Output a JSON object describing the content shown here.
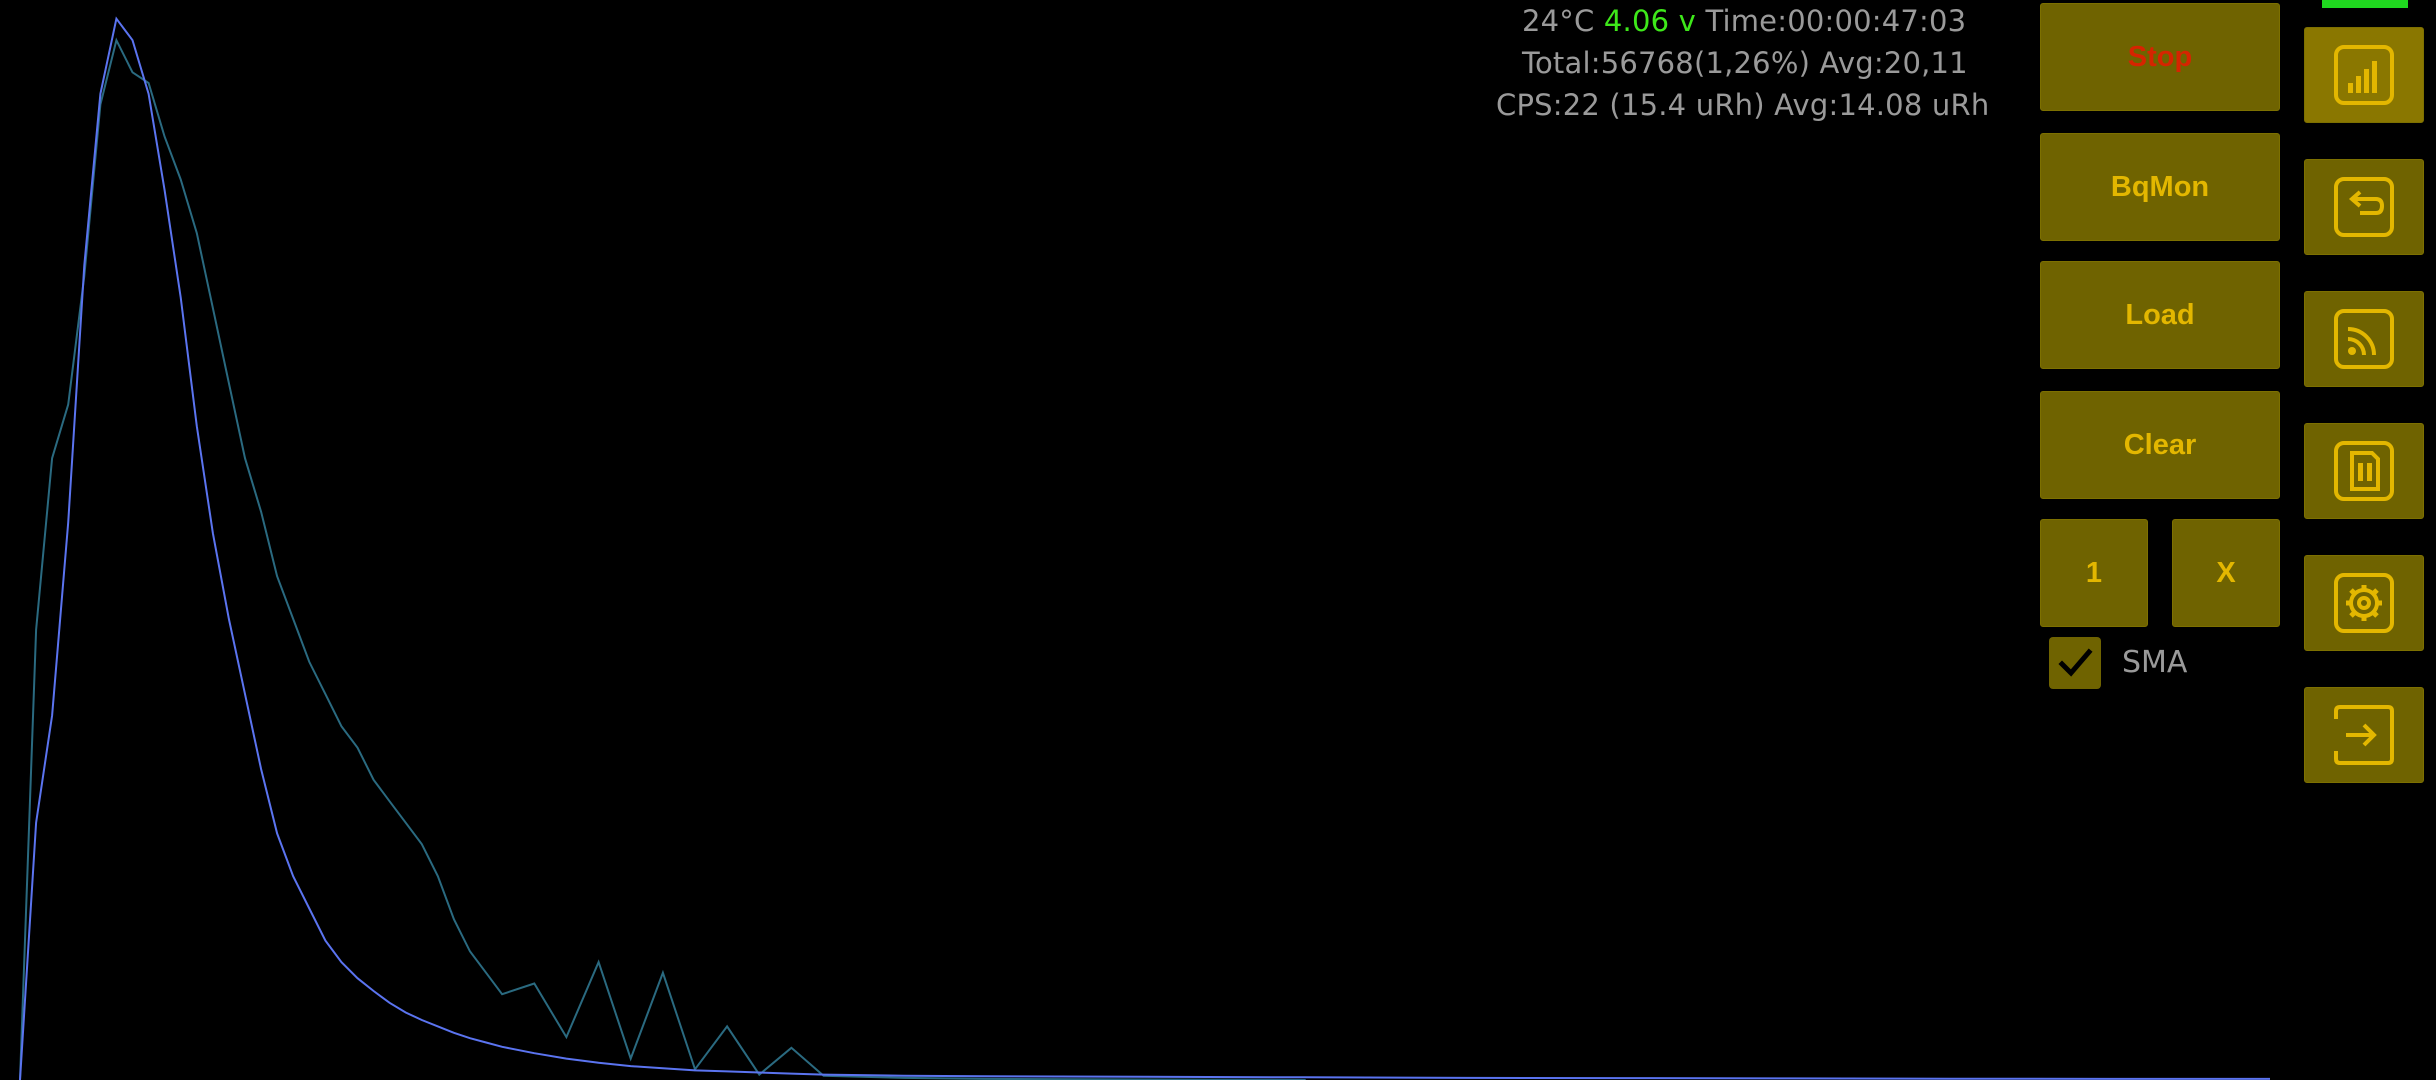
{
  "status": {
    "temperature": "24°C",
    "voltage": "4.06 v",
    "time": "Time:00:00:47:03",
    "total": "Total:56768(1,26%) Avg:20,11",
    "cps": "CPS:22 (15.4 uRh) Avg:14.08 uRh"
  },
  "buttons": {
    "stop": "Stop",
    "bqmon": "BqMon",
    "load": "Load",
    "clear": "Clear",
    "one": "1",
    "x": "X"
  },
  "sma": {
    "label": "SMA",
    "checked": true
  },
  "icons": [
    "signal-bars-icon",
    "undo-icon",
    "rss-feed-icon",
    "sd-card-icon",
    "settings-gear-icon",
    "exit-icon"
  ],
  "colors": {
    "background": "#000000",
    "button_bg": "#6f6300",
    "button_text": "#e3b700",
    "stop_text": "#d62400",
    "voltage": "#3ee81a",
    "series_current": "#5b74f0",
    "series_previous": "#2a6a80"
  },
  "chart_data": {
    "type": "line",
    "title": "",
    "xlabel": "",
    "ylabel": "",
    "xlim": [
      0,
      1400
    ],
    "ylim": [
      0,
      100
    ],
    "grid": false,
    "legend": "none",
    "series": [
      {
        "x": [
          0,
          10,
          20,
          30,
          40,
          50,
          60,
          70,
          80,
          90,
          100,
          110,
          120,
          130,
          140,
          150,
          160,
          170,
          180,
          190,
          200,
          210,
          220,
          230,
          240,
          250,
          260,
          270,
          280,
          290,
          300,
          320,
          340,
          360,
          380,
          400,
          420,
          440,
          460,
          480,
          500,
          550,
          600,
          700,
          800,
          900,
          1000,
          1100,
          1200,
          1300,
          1400
        ],
        "values": [
          0,
          24,
          34,
          52,
          76,
          92,
          99,
          97,
          92,
          83,
          73,
          61,
          51,
          43,
          36,
          29,
          23,
          19,
          16,
          13,
          11,
          9.5,
          8.3,
          7.2,
          6.3,
          5.6,
          5.0,
          4.4,
          3.9,
          3.5,
          3.1,
          2.5,
          2.0,
          1.6,
          1.3,
          1.1,
          0.9,
          0.8,
          0.7,
          0.6,
          0.5,
          0.4,
          0.35,
          0.3,
          0.25,
          0.2,
          0.18,
          0.15,
          0.12,
          0.1,
          0.1
        ]
      },
      {
        "x": [
          0,
          10,
          20,
          30,
          40,
          50,
          60,
          70,
          80,
          90,
          100,
          110,
          120,
          130,
          140,
          150,
          160,
          170,
          180,
          190,
          200,
          210,
          220,
          230,
          240,
          250,
          260,
          270,
          280,
          290,
          300,
          320,
          340,
          360,
          380,
          400,
          420,
          440,
          460,
          480,
          500,
          550,
          600,
          700,
          800
        ],
        "values": [
          0,
          42,
          58,
          63,
          75,
          91,
          97,
          94,
          93,
          88,
          84,
          79,
          72,
          65,
          58,
          53,
          47,
          43,
          39,
          36,
          33,
          31,
          28,
          26,
          24,
          22,
          19,
          15,
          12,
          10,
          8,
          9,
          4,
          11,
          2,
          10,
          1,
          5,
          0.5,
          3,
          0.4,
          0.2,
          0.1,
          0.05,
          0
        ]
      }
    ]
  }
}
